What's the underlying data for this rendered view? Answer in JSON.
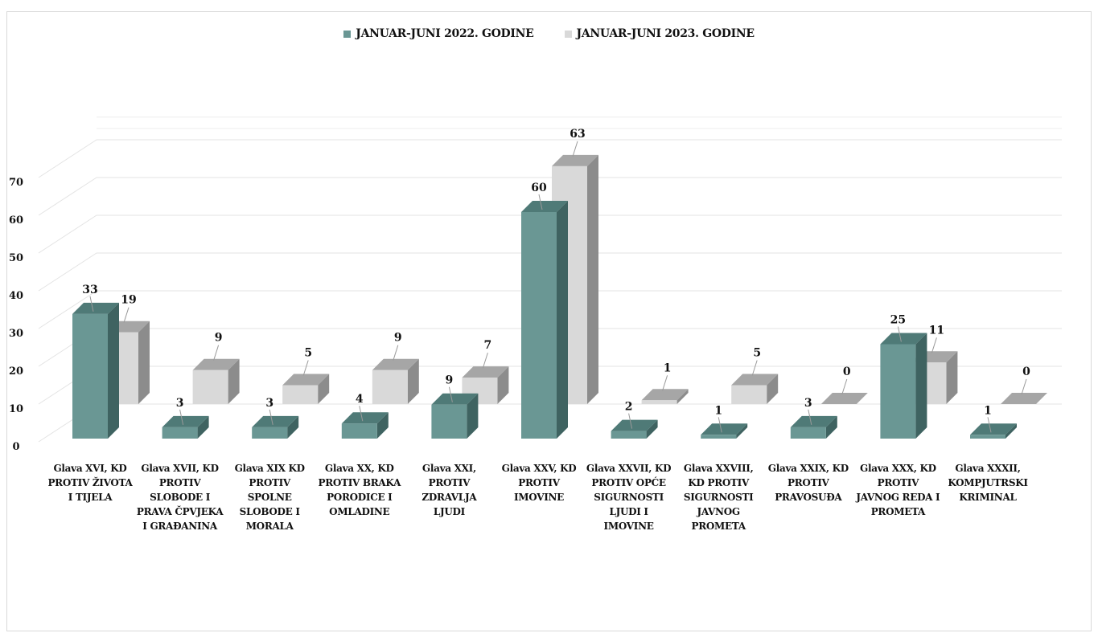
{
  "chart_data": {
    "type": "bar",
    "title": "",
    "xlabel": "",
    "ylabel": "",
    "ylim": [
      0,
      70
    ],
    "yticks": [
      0,
      10,
      20,
      30,
      40,
      50,
      60,
      70
    ],
    "grid": true,
    "legend_position": "top-center",
    "categories": [
      "Glava XVI, KD PROTIV ŽIVOTA I TIJELA",
      "Glava XVII, KD PROTIV SLOBODE I PRAVA ČPVJEKA I GRAĐANINA",
      "Glava XIX KD PROTIV SPOLNE SLOBODE I MORALA",
      "Glava XX, KD PROTIV BRAKA PORODICE I OMLADINE",
      "Glava XXI, PROTIV ZDRAVLJA LJUDI",
      "Glava XXV, KD PROTIV IMOVINE",
      "Glava XXVII, KD PROTIV OPĆE SIGURNOSTI LJUDI I IMOVINE",
      "Glava XXVIII, KD PROTIV SIGURNOSTI JAVNOG PROMETA",
      "Glava XXIX, KD PROTIV PRAVOSUĐA",
      "Glava XXX, KD PROTIV JAVNOG REDA I PROMETA",
      "Glava XXXII, KOMPJUTRSKI KRIMINAL"
    ],
    "series": [
      {
        "name": "JANUAR-JUNI 2022. GODINE",
        "values": [
          33,
          3,
          3,
          4,
          9,
          60,
          2,
          1,
          3,
          25,
          1
        ]
      },
      {
        "name": "JANUAR-JUNI 2023. GODINE",
        "values": [
          19,
          9,
          5,
          9,
          7,
          63,
          1,
          5,
          0,
          11,
          0
        ]
      }
    ]
  },
  "colors": {
    "series_2022": "#6a9794",
    "series_2022_side": "#3f6361",
    "series_2022_top": "#4f7a77",
    "series_2023": "#d9d9d9",
    "series_2023_side": "#8c8c8c",
    "series_2023_top": "#a6a6a6",
    "grid": "#e3e3e3",
    "text": "#111111"
  }
}
